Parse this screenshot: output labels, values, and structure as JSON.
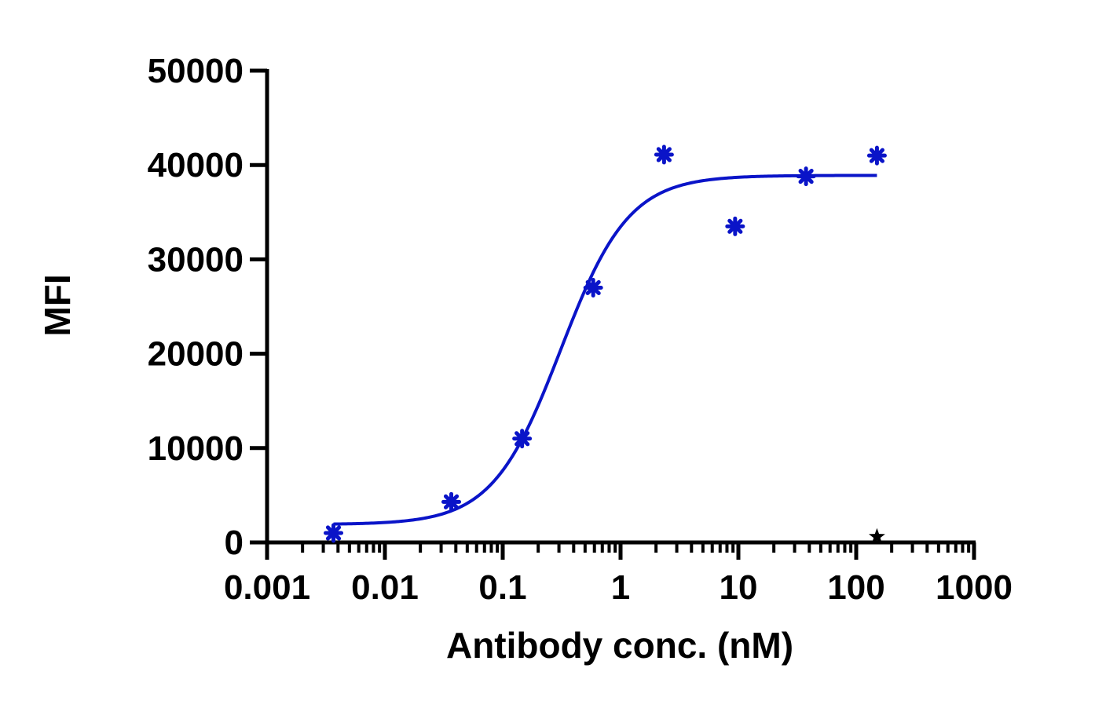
{
  "chart_data": {
    "type": "scatter",
    "xlabel": "Antibody conc. (nM)",
    "ylabel": "MFI",
    "xscale": "log",
    "xlim": [
      0.001,
      1000
    ],
    "ylim": [
      0,
      50000
    ],
    "x_ticks": [
      {
        "value": 0.001,
        "label": "0.001"
      },
      {
        "value": 0.01,
        "label": "0.01"
      },
      {
        "value": 0.1,
        "label": "0.1"
      },
      {
        "value": 1,
        "label": "1"
      },
      {
        "value": 10,
        "label": "10"
      },
      {
        "value": 100,
        "label": "100"
      },
      {
        "value": 1000,
        "label": "1000"
      }
    ],
    "y_ticks": [
      {
        "value": 0,
        "label": "0"
      },
      {
        "value": 10000,
        "label": "10000"
      },
      {
        "value": 20000,
        "label": "20000"
      },
      {
        "value": 30000,
        "label": "30000"
      },
      {
        "value": 40000,
        "label": "40000"
      },
      {
        "value": 50000,
        "label": "50000"
      }
    ],
    "grid": false,
    "series": [
      {
        "color": "#0a14c8",
        "marker": "asterisk",
        "x": [
          0.00366,
          0.0366,
          0.146,
          0.586,
          2.34,
          9.38,
          37.5,
          150
        ],
        "y": [
          1000,
          4300,
          11000,
          27000,
          41100,
          33500,
          38800,
          41000
        ]
      },
      {
        "color": "#000000",
        "marker": "star",
        "x": [
          150
        ],
        "y": [
          600
        ]
      }
    ],
    "fit_curve": {
      "color": "#0a14c8",
      "model": "four-parameter logistic",
      "bottom": 1900,
      "top": 38900,
      "ec50": 0.31,
      "hill": 1.5,
      "x_range": [
        0.00366,
        150
      ]
    }
  }
}
